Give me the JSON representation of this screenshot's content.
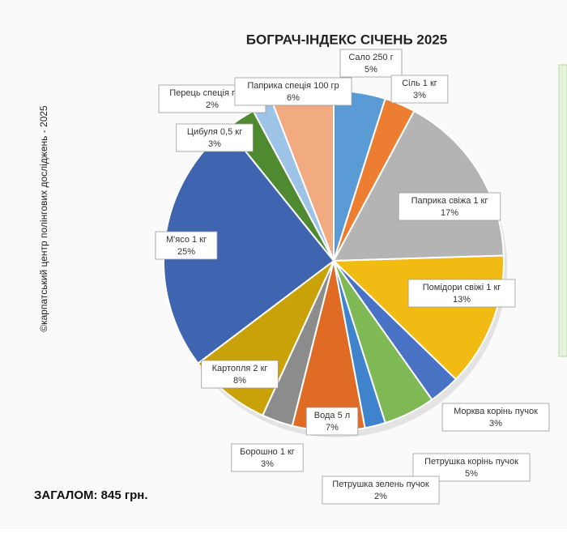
{
  "chart_data": {
    "type": "pie",
    "title": "БОГРАЧ-ІНДЕКС СІЧЕНЬ 2025",
    "source": "©карпатський центр полінгових досліджень - 2025",
    "total": "ЗАГАЛОМ: 845  грн.",
    "categories": [
      "Сало 250 г",
      "Сіль 1 кг",
      "Паприка свіжа 1 кг",
      "Помідори свіжі 1 кг",
      "Морква корінь пучок",
      "Петрушка корінь пучок",
      "Петрушка зелень пучок",
      "Вода 5 л",
      "Борошно 1 кг",
      "Картопля 2 кг",
      "М'ясо 1 кг",
      "Цибуля 0,5 кг",
      "Перець спеція пачка",
      "Паприка спеція 100 гр"
    ],
    "values": [
      5,
      3,
      17,
      13,
      3,
      5,
      2,
      7,
      3,
      8,
      25,
      3,
      2,
      6
    ],
    "value_labels": [
      "5%",
      "3%",
      "17%",
      "13%",
      "3%",
      "5%",
      "2%",
      "7%",
      "3%",
      "8%",
      "25%",
      "3%",
      "2%",
      "6%"
    ],
    "colors": [
      "#5b9bd5",
      "#ed7d31",
      "#b4b4b4",
      "#f2bb13",
      "#4a72c4",
      "#7fb956",
      "#3f83cc",
      "#e06b24",
      "#8c8c8c",
      "#c9a20a",
      "#4065b0",
      "#4f8a31",
      "#9dc3e6",
      "#f2aa80"
    ]
  }
}
